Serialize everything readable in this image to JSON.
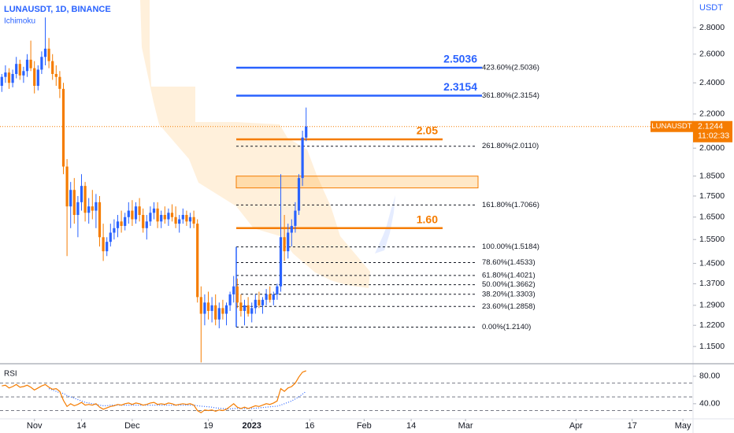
{
  "chart_data": {
    "type": "candlestick",
    "title": "LUNAUSDT, 1D, BINANCE",
    "indicator": "Ichimoku",
    "currency": "USDT",
    "up_color": "#2962ff",
    "down_color": "#f57c00",
    "log_scale": true,
    "open": [
      2.38,
      2.44,
      2.47,
      2.4,
      2.46,
      2.53,
      2.45,
      2.48,
      2.56,
      2.5,
      2.38,
      2.49,
      2.58,
      2.64,
      2.55,
      2.46,
      2.44,
      2.36,
      1.9,
      1.7,
      1.78,
      1.66,
      1.72,
      1.8,
      1.67,
      1.7,
      1.68,
      1.72,
      1.56,
      1.5,
      1.54,
      1.58,
      1.6,
      1.63,
      1.61,
      1.65,
      1.68,
      1.64,
      1.7,
      1.66,
      1.6,
      1.63,
      1.67,
      1.69,
      1.63,
      1.66,
      1.64,
      1.67,
      1.65,
      1.62,
      1.64,
      1.66,
      1.63,
      1.65,
      1.62,
      1.32,
      1.26,
      1.3,
      1.27,
      1.29,
      1.24,
      1.28,
      1.26,
      1.29,
      1.33,
      1.36,
      1.3,
      1.27,
      1.29,
      1.26,
      1.28,
      1.31,
      1.29,
      1.31,
      1.33,
      1.31,
      1.33,
      1.36,
      1.56,
      1.5,
      1.58,
      1.61,
      1.68,
      1.84,
      2.06
    ],
    "high": [
      2.46,
      2.52,
      2.5,
      2.49,
      2.58,
      2.56,
      2.51,
      2.6,
      2.7,
      2.55,
      2.52,
      2.62,
      2.88,
      2.72,
      2.6,
      2.52,
      2.48,
      2.4,
      1.94,
      1.82,
      1.84,
      1.75,
      1.86,
      1.82,
      1.74,
      1.78,
      1.76,
      1.75,
      1.62,
      1.56,
      1.62,
      1.64,
      1.66,
      1.68,
      1.67,
      1.72,
      1.73,
      1.72,
      1.74,
      1.69,
      1.66,
      1.7,
      1.72,
      1.72,
      1.68,
      1.7,
      1.69,
      1.71,
      1.7,
      1.66,
      1.69,
      1.68,
      1.67,
      1.68,
      1.64,
      1.36,
      1.33,
      1.34,
      1.32,
      1.33,
      1.3,
      1.31,
      1.3,
      1.34,
      1.4,
      1.39,
      1.33,
      1.31,
      1.32,
      1.3,
      1.33,
      1.34,
      1.32,
      1.35,
      1.36,
      1.34,
      1.37,
      1.86,
      1.66,
      1.62,
      1.64,
      1.72,
      1.86,
      2.1,
      2.24
    ],
    "low": [
      2.34,
      2.4,
      2.36,
      2.37,
      2.43,
      2.42,
      2.4,
      2.44,
      2.48,
      2.33,
      2.35,
      2.46,
      2.52,
      2.5,
      2.42,
      2.38,
      2.3,
      1.86,
      1.48,
      1.6,
      1.62,
      1.56,
      1.68,
      1.63,
      1.62,
      1.64,
      1.6,
      1.52,
      1.46,
      1.48,
      1.52,
      1.55,
      1.56,
      1.58,
      1.59,
      1.62,
      1.61,
      1.62,
      1.63,
      1.58,
      1.55,
      1.61,
      1.64,
      1.6,
      1.6,
      1.62,
      1.61,
      1.63,
      1.6,
      1.58,
      1.62,
      1.61,
      1.6,
      1.6,
      1.3,
      1.1,
      1.22,
      1.24,
      1.23,
      1.22,
      1.21,
      1.24,
      1.22,
      1.27,
      1.3,
      1.28,
      1.25,
      1.22,
      1.25,
      1.23,
      1.26,
      1.28,
      1.26,
      1.29,
      1.3,
      1.29,
      1.31,
      1.34,
      1.46,
      1.47,
      1.52,
      1.58,
      1.66,
      1.8,
      2.04
    ],
    "close": [
      2.44,
      2.47,
      2.4,
      2.46,
      2.53,
      2.45,
      2.48,
      2.56,
      2.5,
      2.38,
      2.49,
      2.58,
      2.64,
      2.55,
      2.46,
      2.44,
      2.36,
      1.9,
      1.7,
      1.78,
      1.66,
      1.72,
      1.8,
      1.67,
      1.7,
      1.68,
      1.72,
      1.56,
      1.5,
      1.54,
      1.58,
      1.6,
      1.63,
      1.61,
      1.65,
      1.68,
      1.64,
      1.7,
      1.66,
      1.6,
      1.63,
      1.67,
      1.69,
      1.63,
      1.66,
      1.64,
      1.67,
      1.65,
      1.62,
      1.64,
      1.66,
      1.63,
      1.65,
      1.62,
      1.32,
      1.26,
      1.3,
      1.27,
      1.29,
      1.24,
      1.28,
      1.26,
      1.29,
      1.33,
      1.36,
      1.3,
      1.27,
      1.29,
      1.26,
      1.28,
      1.31,
      1.29,
      1.31,
      1.33,
      1.31,
      1.33,
      1.36,
      1.56,
      1.5,
      1.58,
      1.61,
      1.68,
      1.84,
      2.06,
      2.1244
    ],
    "xlim": [
      -0.5,
      190.8
    ],
    "xticks": [
      {
        "value": 9,
        "label": "Nov"
      },
      {
        "value": 22,
        "label": "14"
      },
      {
        "value": 36,
        "label": "Dec"
      },
      {
        "value": 57,
        "label": "19"
      },
      {
        "value": 69,
        "label": "2023"
      },
      {
        "value": 85,
        "label": "16"
      },
      {
        "value": 100,
        "label": "Feb"
      },
      {
        "value": 113,
        "label": "14"
      },
      {
        "value": 128,
        "label": "Mar"
      },
      {
        "value": 158.5,
        "label": "Apr"
      },
      {
        "value": 174,
        "label": "17"
      },
      {
        "value": 188,
        "label": "May"
      }
    ],
    "ylim": [
      1.096,
      3.024
    ],
    "yticks": [
      {
        "value": 2.8,
        "label": "2.8000"
      },
      {
        "value": 2.6,
        "label": "2.6000"
      },
      {
        "value": 2.4,
        "label": "2.4000"
      },
      {
        "value": 2.2,
        "label": "2.2000"
      },
      {
        "value": 2.0,
        "label": "2.0000"
      },
      {
        "value": 1.85,
        "label": "1.8500"
      },
      {
        "value": 1.75,
        "label": "1.7500"
      },
      {
        "value": 1.65,
        "label": "1.6500"
      },
      {
        "value": 1.55,
        "label": "1.5500"
      },
      {
        "value": 1.45,
        "label": "1.4500"
      },
      {
        "value": 1.37,
        "label": "1.3700"
      },
      {
        "value": 1.29,
        "label": "1.2900"
      },
      {
        "value": 1.22,
        "label": "1.2200"
      },
      {
        "value": 1.15,
        "label": "1.1500"
      }
    ],
    "symbol_label": "LUNAUSDT",
    "last_price": 2.1244,
    "countdown": "11:02:33",
    "levels": [
      {
        "value": 2.5036,
        "label": "2.5036",
        "color": "#2962ff"
      },
      {
        "value": 2.3154,
        "label": "2.3154",
        "color": "#2962ff"
      },
      {
        "value": 2.05,
        "label": "2.05",
        "color": "#f57c00"
      },
      {
        "value": 1.6,
        "label": "1.60",
        "color": "#f57c00"
      }
    ],
    "fib": [
      {
        "value": 2.5036,
        "label": "423.60%(2.5036)"
      },
      {
        "value": 2.3154,
        "label": "361.80%(2.3154)"
      },
      {
        "value": 2.011,
        "label": "261.80%(2.0110)"
      },
      {
        "value": 1.7066,
        "label": "161.80%(1.7066)"
      },
      {
        "value": 1.5184,
        "label": "100.00%(1.5184)"
      },
      {
        "value": 1.4533,
        "label": "78.60%(1.4533)"
      },
      {
        "value": 1.4021,
        "label": "61.80%(1.4021)"
      },
      {
        "value": 1.3662,
        "label": "50.00%(1.3662)"
      },
      {
        "value": 1.3303,
        "label": "38.20%(1.3303)"
      },
      {
        "value": 1.2858,
        "label": "23.60%(1.2858)"
      },
      {
        "value": 1.214,
        "label": "0.00%(1.2140)"
      }
    ],
    "zone": [
      1.79,
      1.85
    ],
    "rsi": {
      "label": "RSI",
      "color": "#f57c00",
      "ma_color": "#2962ff",
      "ylim": [
        18,
        96
      ],
      "yticks": [
        {
          "value": 80,
          "label": "80.00"
        },
        {
          "value": 40,
          "label": "40.00"
        }
      ],
      "levels": [
        70,
        50,
        30
      ],
      "values": [
        66,
        67,
        63,
        65,
        68,
        64,
        65,
        67,
        64,
        60,
        63,
        66,
        68,
        64,
        61,
        62,
        58,
        45,
        36,
        40,
        37,
        39,
        42,
        38,
        39,
        38,
        40,
        35,
        32,
        34,
        36,
        37,
        39,
        38,
        40,
        41,
        39,
        41,
        40,
        38,
        39,
        41,
        42,
        39,
        40,
        39,
        41,
        40,
        38,
        39,
        40,
        39,
        40,
        38,
        30,
        27,
        31,
        30,
        31,
        29,
        31,
        30,
        32,
        36,
        40,
        35,
        33,
        35,
        33,
        35,
        37,
        36,
        38,
        40,
        39,
        41,
        44,
        62,
        58,
        63,
        65,
        70,
        79,
        86,
        88
      ],
      "ma_values": [
        null,
        null,
        null,
        null,
        null,
        null,
        null,
        null,
        null,
        null,
        null,
        null,
        null,
        62,
        60,
        58,
        56,
        55,
        52,
        50,
        48,
        46,
        44,
        42,
        41,
        40,
        39,
        38,
        37,
        37,
        38,
        38,
        38,
        38,
        38,
        38,
        38,
        38,
        38,
        38,
        38,
        38,
        38,
        38,
        38,
        38,
        38,
        38,
        38,
        38,
        38,
        38,
        38,
        38,
        37,
        36.5,
        36,
        35.5,
        35,
        34,
        33.5,
        33,
        32.5,
        32.5,
        33,
        33,
        33,
        33,
        33,
        33,
        33.5,
        34,
        34.5,
        35,
        35.5,
        36,
        36.5,
        38,
        40,
        42,
        44,
        47,
        50,
        54,
        58
      ]
    }
  }
}
